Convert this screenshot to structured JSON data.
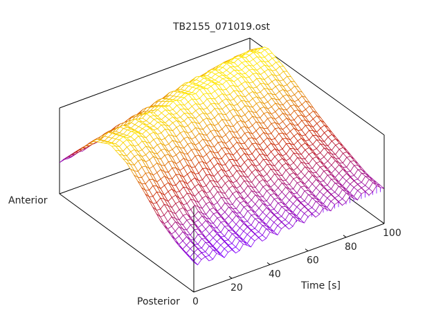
{
  "chart_data": {
    "type": "surface",
    "title": "TB2155_071019.ost",
    "xlabel": "Time [s]",
    "x_ticks": [
      "0",
      "20",
      "40",
      "60",
      "80",
      "100"
    ],
    "xlim": [
      0,
      100
    ],
    "ylabels": {
      "start": "Anterior",
      "end": "Posterior"
    },
    "zlim": [
      0,
      1.1
    ],
    "colors": {
      "low": "#8000ff",
      "mid": "#c82000",
      "high": "#ffe600"
    },
    "time": [
      0,
      10,
      20,
      30,
      40,
      50,
      60,
      70,
      80,
      90,
      100
    ],
    "position": [
      0,
      0.125,
      0.25,
      0.375,
      0.5,
      0.625,
      0.75,
      0.875,
      1
    ],
    "z": [
      [
        0.36,
        0.62,
        0.88,
        0.98,
        0.9,
        0.72,
        0.52,
        0.4,
        0.34
      ],
      [
        0.4,
        0.68,
        0.92,
        1.0,
        0.88,
        0.68,
        0.5,
        0.38,
        0.32
      ],
      [
        0.45,
        0.74,
        0.95,
        0.98,
        0.84,
        0.64,
        0.46,
        0.36,
        0.3
      ],
      [
        0.5,
        0.8,
        0.98,
        0.96,
        0.8,
        0.6,
        0.44,
        0.36,
        0.32
      ],
      [
        0.55,
        0.86,
        1.0,
        0.94,
        0.78,
        0.6,
        0.46,
        0.38,
        0.34
      ],
      [
        0.62,
        0.92,
        1.02,
        0.92,
        0.76,
        0.6,
        0.48,
        0.4,
        0.36
      ],
      [
        0.68,
        0.98,
        1.04,
        0.92,
        0.76,
        0.62,
        0.5,
        0.42,
        0.38
      ],
      [
        0.74,
        1.0,
        1.02,
        0.9,
        0.76,
        0.62,
        0.52,
        0.44,
        0.4
      ],
      [
        0.8,
        1.04,
        1.0,
        0.88,
        0.76,
        0.64,
        0.54,
        0.46,
        0.42
      ],
      [
        0.84,
        1.06,
        0.98,
        0.86,
        0.74,
        0.62,
        0.54,
        0.46,
        0.42
      ],
      [
        0.86,
        1.04,
        0.96,
        0.84,
        0.72,
        0.62,
        0.54,
        0.46,
        0.44
      ]
    ]
  }
}
